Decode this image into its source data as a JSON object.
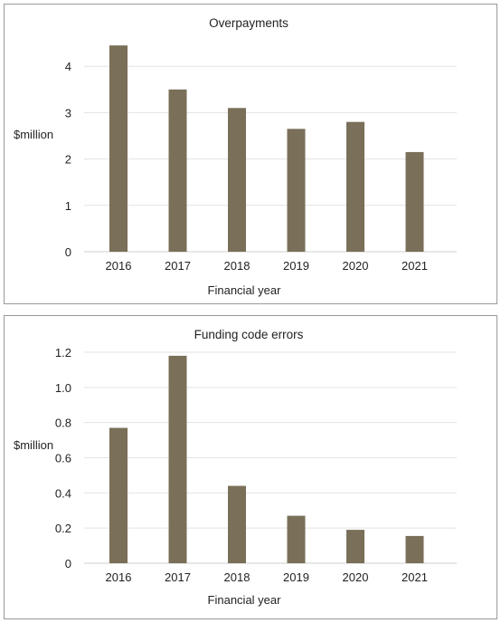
{
  "chart_data": [
    {
      "type": "bar",
      "title": "Overpayments",
      "xlabel": "Financial year",
      "ylabel": "$million",
      "categories": [
        "2016",
        "2017",
        "2018",
        "2019",
        "2020",
        "2021"
      ],
      "values": [
        4.45,
        3.5,
        3.1,
        2.65,
        2.8,
        2.15
      ],
      "ylim": [
        0,
        5
      ],
      "yticks": [
        "0",
        "1",
        "2",
        "3",
        "4"
      ],
      "grid": true,
      "bar_color": "#7a6f58"
    },
    {
      "type": "bar",
      "title": "Funding code errors",
      "xlabel": "Financial year",
      "ylabel": "$million",
      "categories": [
        "2016",
        "2017",
        "2018",
        "2019",
        "2020",
        "2021"
      ],
      "values": [
        0.77,
        1.18,
        0.44,
        0.27,
        0.19,
        0.155
      ],
      "ylim": [
        0,
        1.2
      ],
      "yticks": [
        "0",
        "0.2",
        "0.4",
        "0.6",
        "0.8",
        "1.0",
        "1.2"
      ],
      "grid": true,
      "bar_color": "#7a6f58"
    }
  ]
}
